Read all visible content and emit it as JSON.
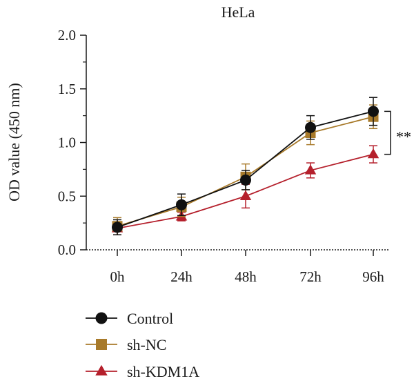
{
  "chart_data": {
    "type": "line",
    "title": "HeLa",
    "xlabel": "",
    "ylabel": "OD value (450 nm)",
    "categories": [
      "0h",
      "24h",
      "48h",
      "72h",
      "96h"
    ],
    "ylim": [
      0,
      2.0
    ],
    "yticks": [
      "0.0",
      "0.5",
      "1.0",
      "1.5",
      "2.0"
    ],
    "grid": false,
    "legend_position": "bottom-left",
    "series": [
      {
        "name": "Control",
        "marker": "circle",
        "color": "#111111",
        "values": [
          0.21,
          0.42,
          0.65,
          1.14,
          1.29
        ],
        "errors": [
          0.07,
          0.1,
          0.09,
          0.11,
          0.13
        ]
      },
      {
        "name": "sh-NC",
        "marker": "square",
        "color": "#a87a2a",
        "values": [
          0.22,
          0.4,
          0.68,
          1.09,
          1.24
        ],
        "errors": [
          0.08,
          0.09,
          0.12,
          0.11,
          0.11
        ]
      },
      {
        "name": "sh-KDM1A",
        "marker": "triangle",
        "color": "#b5202c",
        "values": [
          0.2,
          0.31,
          0.5,
          0.74,
          0.89
        ],
        "errors": [
          0.06,
          0.04,
          0.11,
          0.07,
          0.08
        ]
      }
    ],
    "annotations": [
      {
        "text": "**",
        "between": [
          "Control",
          "sh-KDM1A"
        ],
        "at": "96h"
      }
    ]
  }
}
